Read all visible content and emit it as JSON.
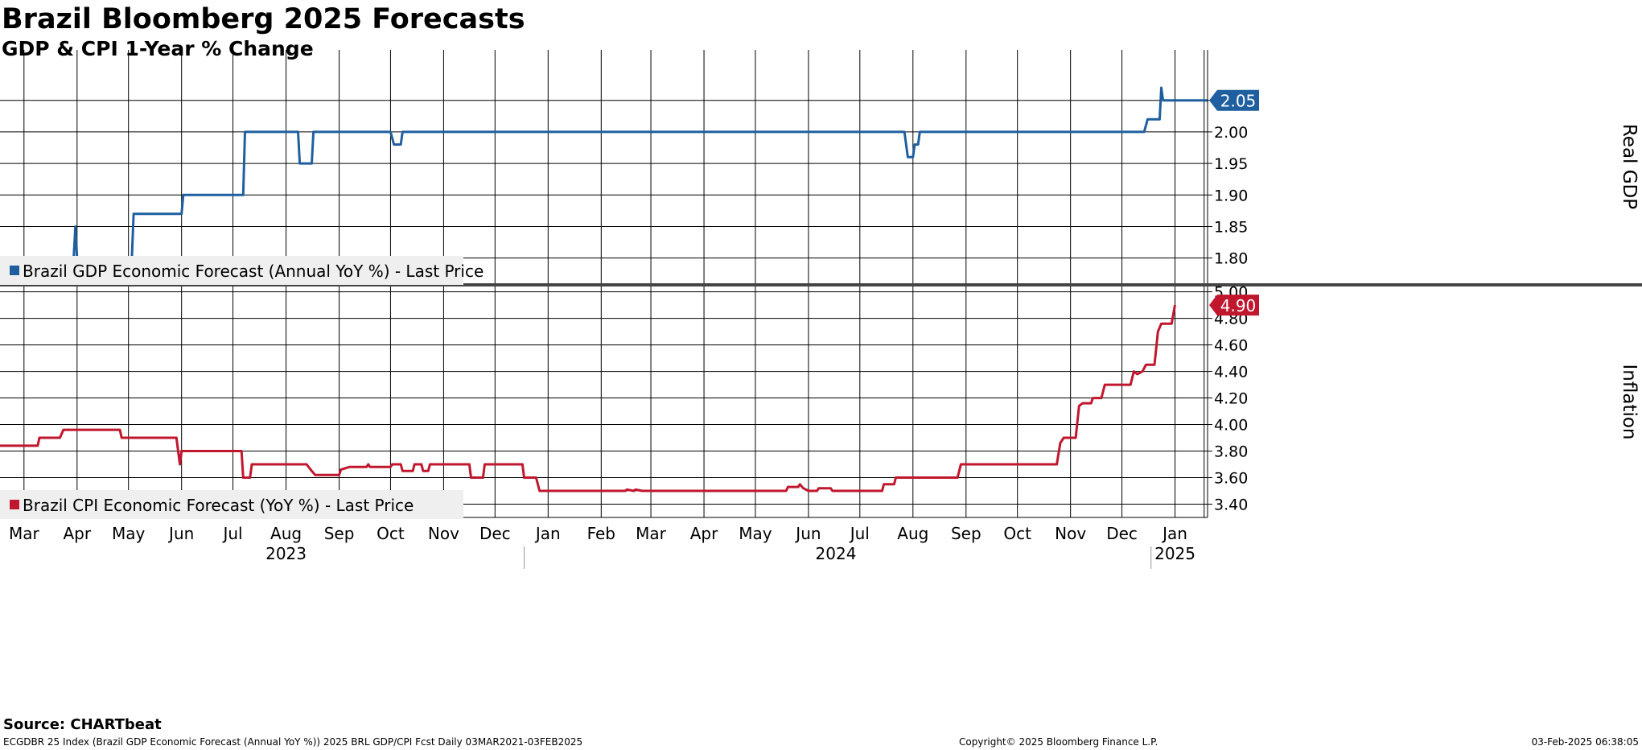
{
  "title": "Brazil Bloomberg 2025 Forecasts",
  "subtitle": "GDP & CPI 1-Year % Change",
  "source": "Source: CHARTbeat",
  "footer": {
    "left": "ECGDBR 25 Index (Brazil GDP Economic Forecast (Annual YoY %)) 2025 BRL GDP/CPI Fcst  Daily 03MAR2021-03FEB2025",
    "middle": "Copyright© 2025 Bloomberg Finance L.P.",
    "right": "03-Feb-2025 06:38:05"
  },
  "colors": {
    "gdp": "#1f5fa0",
    "cpi": "#c0172e",
    "grid": "#000000"
  },
  "chart_data": [
    {
      "type": "line",
      "ylabel": "Real GDP",
      "ylim": [
        1.76,
        2.13
      ],
      "yticks": [
        1.8,
        1.85,
        1.9,
        1.95,
        2.0,
        2.05
      ],
      "xlim": [
        "2023-03-01",
        "2025-02-03"
      ],
      "grid": true,
      "legend": "bottom-left",
      "series": [
        {
          "name": "Brazil GDP Economic Forecast (Annual YoY %) - Last Price",
          "last_value": "2.05",
          "points": [
            [
              "2023-03-01",
              1.8
            ],
            [
              "2023-04-13",
              1.8
            ],
            [
              "2023-04-14",
              1.85
            ],
            [
              "2023-04-15",
              1.8
            ],
            [
              "2023-05-17",
              1.8
            ],
            [
              "2023-05-18",
              1.87
            ],
            [
              "2023-06-15",
              1.87
            ],
            [
              "2023-06-16",
              1.9
            ],
            [
              "2023-07-21",
              1.9
            ],
            [
              "2023-07-22",
              2.0
            ],
            [
              "2023-08-22",
              2.0
            ],
            [
              "2023-08-23",
              1.95
            ],
            [
              "2023-08-30",
              1.95
            ],
            [
              "2023-08-31",
              2.0
            ],
            [
              "2023-10-15",
              2.0
            ],
            [
              "2023-10-17",
              1.98
            ],
            [
              "2023-10-21",
              1.98
            ],
            [
              "2023-10-22",
              2.0
            ],
            [
              "2024-08-10",
              2.0
            ],
            [
              "2024-08-12",
              1.96
            ],
            [
              "2024-08-15",
              1.96
            ],
            [
              "2024-08-16",
              1.98
            ],
            [
              "2024-08-18",
              1.98
            ],
            [
              "2024-08-19",
              2.0
            ],
            [
              "2024-12-28",
              2.0
            ],
            [
              "2024-12-30",
              2.02
            ],
            [
              "2025-01-06",
              2.02
            ],
            [
              "2025-01-07",
              2.07
            ],
            [
              "2025-01-08",
              2.05
            ],
            [
              "2025-02-03",
              2.05
            ]
          ]
        }
      ]
    },
    {
      "type": "line",
      "ylabel": "Inflation",
      "ylim": [
        3.3,
        5.04
      ],
      "yticks": [
        3.4,
        3.6,
        3.8,
        4.0,
        4.2,
        4.4,
        4.6,
        4.8,
        5.0
      ],
      "xlim": [
        "2023-03-01",
        "2025-02-03"
      ],
      "grid": true,
      "legend": "bottom-left",
      "series": [
        {
          "name": "Brazil CPI Economic Forecast (YoY %) - Last Price",
          "last_value": "4.90",
          "points": [
            [
              "2023-03-01",
              3.84
            ],
            [
              "2023-03-23",
              3.84
            ],
            [
              "2023-03-24",
              3.9
            ],
            [
              "2023-04-05",
              3.9
            ],
            [
              "2023-04-07",
              3.96
            ],
            [
              "2023-05-10",
              3.96
            ],
            [
              "2023-05-11",
              3.9
            ],
            [
              "2023-06-12",
              3.9
            ],
            [
              "2023-06-14",
              3.7
            ],
            [
              "2023-06-15",
              3.8
            ],
            [
              "2023-07-20",
              3.8
            ],
            [
              "2023-07-21",
              3.6
            ],
            [
              "2023-07-25",
              3.6
            ],
            [
              "2023-07-26",
              3.7
            ],
            [
              "2023-08-27",
              3.7
            ],
            [
              "2023-08-30",
              3.65
            ],
            [
              "2023-09-01",
              3.62
            ],
            [
              "2023-09-15",
              3.62
            ],
            [
              "2023-09-16",
              3.66
            ],
            [
              "2023-09-21",
              3.68
            ],
            [
              "2023-10-01",
              3.68
            ],
            [
              "2023-10-02",
              3.7
            ],
            [
              "2023-10-03",
              3.68
            ],
            [
              "2023-10-15",
              3.68
            ],
            [
              "2023-10-16",
              3.7
            ],
            [
              "2023-10-21",
              3.7
            ],
            [
              "2023-10-22",
              3.65
            ],
            [
              "2023-10-28",
              3.65
            ],
            [
              "2023-10-29",
              3.7
            ],
            [
              "2023-11-02",
              3.7
            ],
            [
              "2023-11-03",
              3.65
            ],
            [
              "2023-11-06",
              3.65
            ],
            [
              "2023-11-07",
              3.7
            ],
            [
              "2023-11-30",
              3.7
            ],
            [
              "2023-12-01",
              3.6
            ],
            [
              "2023-12-08",
              3.6
            ],
            [
              "2023-12-09",
              3.7
            ],
            [
              "2023-12-31",
              3.7
            ],
            [
              "2024-01-01",
              3.6
            ],
            [
              "2024-01-08",
              3.6
            ],
            [
              "2024-01-10",
              3.5
            ],
            [
              "2024-02-29",
              3.5
            ],
            [
              "2024-03-01",
              3.51
            ],
            [
              "2024-03-05",
              3.5
            ],
            [
              "2024-03-06",
              3.51
            ],
            [
              "2024-03-10",
              3.5
            ],
            [
              "2024-06-02",
              3.5
            ],
            [
              "2024-06-03",
              3.53
            ],
            [
              "2024-06-09",
              3.53
            ],
            [
              "2024-06-10",
              3.55
            ],
            [
              "2024-06-12",
              3.52
            ],
            [
              "2024-06-15",
              3.5
            ],
            [
              "2024-06-20",
              3.5
            ],
            [
              "2024-06-21",
              3.52
            ],
            [
              "2024-06-28",
              3.52
            ],
            [
              "2024-06-29",
              3.5
            ],
            [
              "2024-07-28",
              3.5
            ],
            [
              "2024-07-29",
              3.55
            ],
            [
              "2024-08-04",
              3.55
            ],
            [
              "2024-08-05",
              3.6
            ],
            [
              "2024-09-10",
              3.6
            ],
            [
              "2024-09-12",
              3.7
            ],
            [
              "2024-11-07",
              3.7
            ],
            [
              "2024-11-09",
              3.86
            ],
            [
              "2024-11-11",
              3.9
            ],
            [
              "2024-11-18",
              3.9
            ],
            [
              "2024-11-20",
              4.14
            ],
            [
              "2024-11-22",
              4.16
            ],
            [
              "2024-11-27",
              4.16
            ],
            [
              "2024-11-28",
              4.2
            ],
            [
              "2024-12-03",
              4.2
            ],
            [
              "2024-12-05",
              4.3
            ],
            [
              "2024-12-20",
              4.3
            ],
            [
              "2024-12-22",
              4.4
            ],
            [
              "2024-12-24",
              4.38
            ],
            [
              "2024-12-27",
              4.4
            ],
            [
              "2024-12-29",
              4.45
            ],
            [
              "2025-01-03",
              4.45
            ],
            [
              "2025-01-05",
              4.7
            ],
            [
              "2025-01-07",
              4.76
            ],
            [
              "2025-01-13",
              4.76
            ],
            [
              "2025-01-15",
              4.9
            ]
          ]
        }
      ]
    }
  ],
  "x_axis": {
    "months": [
      {
        "label": "Mar",
        "date": "2023-03-15"
      },
      {
        "label": "Apr",
        "date": "2023-04-15"
      },
      {
        "label": "May",
        "date": "2023-05-15"
      },
      {
        "label": "Jun",
        "date": "2023-06-15"
      },
      {
        "label": "Jul",
        "date": "2023-07-15"
      },
      {
        "label": "Aug",
        "date": "2023-08-15"
      },
      {
        "label": "Sep",
        "date": "2023-09-15"
      },
      {
        "label": "Oct",
        "date": "2023-10-15"
      },
      {
        "label": "Nov",
        "date": "2023-11-15"
      },
      {
        "label": "Dec",
        "date": "2023-12-15"
      },
      {
        "label": "Jan",
        "date": "2024-01-15"
      },
      {
        "label": "Feb",
        "date": "2024-02-15"
      },
      {
        "label": "Mar",
        "date": "2024-03-15"
      },
      {
        "label": "Apr",
        "date": "2024-04-15"
      },
      {
        "label": "May",
        "date": "2024-05-15"
      },
      {
        "label": "Jun",
        "date": "2024-06-15"
      },
      {
        "label": "Jul",
        "date": "2024-07-15"
      },
      {
        "label": "Aug",
        "date": "2024-08-15"
      },
      {
        "label": "Sep",
        "date": "2024-09-15"
      },
      {
        "label": "Oct",
        "date": "2024-10-15"
      },
      {
        "label": "Nov",
        "date": "2024-11-15"
      },
      {
        "label": "Dec",
        "date": "2024-12-15"
      },
      {
        "label": "Jan",
        "date": "2025-01-15"
      }
    ],
    "gridlines": [
      "2023-03-15",
      "2023-04-15",
      "2023-05-15",
      "2023-06-15",
      "2023-07-15",
      "2023-08-15",
      "2023-09-15",
      "2023-10-15",
      "2023-11-15",
      "2023-12-15",
      "2024-01-15",
      "2024-02-15",
      "2024-03-15",
      "2024-04-15",
      "2024-05-15",
      "2024-06-15",
      "2024-07-15",
      "2024-08-15",
      "2024-09-15",
      "2024-10-15",
      "2024-11-15",
      "2024-12-15",
      "2025-01-15",
      "2025-02-01"
    ],
    "years": [
      {
        "label": "2023",
        "date": "2023-08-15"
      },
      {
        "label": "2024",
        "date": "2024-07-01"
      },
      {
        "label": "2025",
        "date": "2025-01-15"
      }
    ],
    "year_dividers": [
      "2024-01-01",
      "2025-01-01"
    ]
  }
}
